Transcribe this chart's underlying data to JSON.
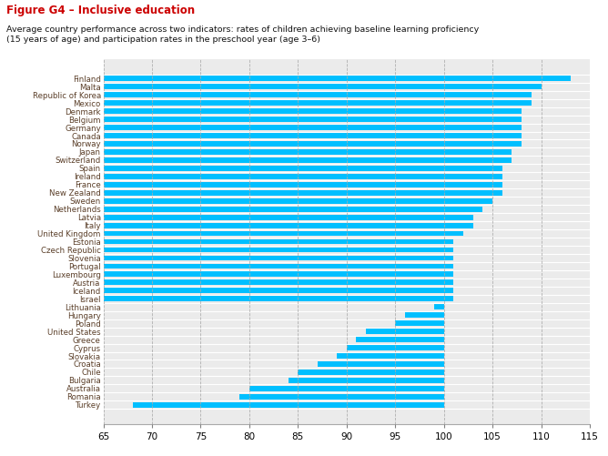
{
  "title_red": "Figure G4 – Inclusive education",
  "subtitle": "Average country performance across two indicators: rates of children achieving baseline learning proficiency\n(15 years of age) and participation rates in the preschool year (age 3–6)",
  "countries": [
    "Finland",
    "Malta",
    "Republic of Korea",
    "Mexico",
    "Denmark",
    "Belgium",
    "Germany",
    "Canada",
    "Norway",
    "Japan",
    "Switzerland",
    "Spain",
    "Ireland",
    "France",
    "New Zealand",
    "Sweden",
    "Netherlands",
    "Latvia",
    "Italy",
    "United Kingdom",
    "Estonia",
    "Czech Republic",
    "Slovenia",
    "Portugal",
    "Luxembourg",
    "Austria",
    "Iceland",
    "Israel",
    "Lithuania",
    "Hungary",
    "Poland",
    "United States",
    "Greece",
    "Cyprus",
    "Slovakia",
    "Croatia",
    "Chile",
    "Bulgaria",
    "Australia",
    "Romania",
    "Turkey"
  ],
  "bar_lefts": [
    65,
    65,
    65,
    65,
    65,
    65,
    65,
    65,
    65,
    65,
    65,
    65,
    65,
    65,
    65,
    65,
    65,
    65,
    65,
    65,
    65,
    65,
    65,
    65,
    65,
    65,
    65,
    65,
    99,
    96,
    95,
    92,
    91,
    90,
    89,
    87,
    85,
    84,
    80,
    79,
    68
  ],
  "bar_rights": [
    113,
    110,
    109,
    109,
    108,
    108,
    108,
    108,
    108,
    107,
    107,
    106,
    106,
    106,
    106,
    105,
    104,
    103,
    103,
    102,
    101,
    101,
    101,
    101,
    101,
    101,
    101,
    101,
    100,
    100,
    100,
    100,
    100,
    100,
    100,
    100,
    100,
    100,
    100,
    100,
    100
  ],
  "bar_color": "#00BFFF",
  "background_color": "#EBEBEB",
  "plot_bg_color": "#EBEBEB",
  "xlim": [
    65,
    115
  ],
  "xticks": [
    65,
    70,
    75,
    80,
    85,
    90,
    95,
    100,
    105,
    110,
    115
  ],
  "xtick_labels": [
    "65",
    "70",
    "75",
    "80",
    "85",
    "90",
    "95",
    "100",
    "105",
    "110",
    "115"
  ],
  "title_color": "#CC0000",
  "label_color": "#5a3e28",
  "fig_width": 6.68,
  "fig_height": 5.01,
  "dpi": 100
}
